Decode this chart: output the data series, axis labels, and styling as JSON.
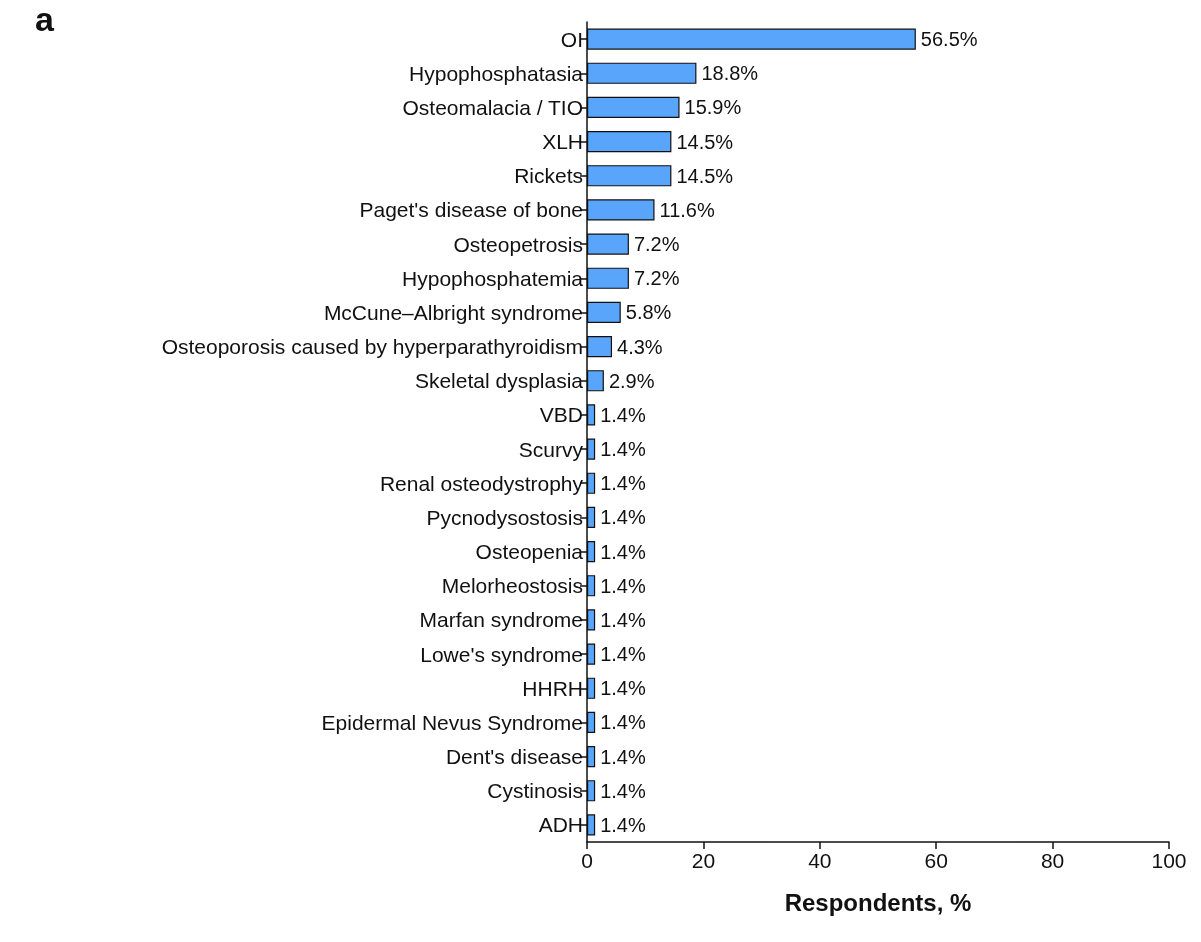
{
  "chart_data": {
    "type": "bar",
    "orientation": "horizontal",
    "annotations": [
      "a"
    ],
    "xlabel": "Respondents, %",
    "categories": [
      "OI",
      "Hypophosphatasia",
      "Osteomalacia / TIO",
      "XLH",
      "Rickets",
      "Paget's disease of bone",
      "Osteopetrosis",
      "Hypophosphatemia",
      "McCune–Albright syndrome",
      "Osteoporosis caused by hyperparathyroidism",
      "Skeletal dysplasia",
      "VBD",
      "Scurvy",
      "Renal osteodystrophy",
      "Pycnodysostosis",
      "Osteopenia",
      "Melorheostosis",
      "Marfan syndrome",
      "Lowe's syndrome",
      "HHRH",
      "Epidermal Nevus Syndrome",
      "Dent's disease",
      "Cystinosis",
      "ADH"
    ],
    "values": [
      56.5,
      18.8,
      15.9,
      14.5,
      14.5,
      11.6,
      7.2,
      7.2,
      5.8,
      4.3,
      2.9,
      1.4,
      1.4,
      1.4,
      1.4,
      1.4,
      1.4,
      1.4,
      1.4,
      1.4,
      1.4,
      1.4,
      1.4,
      1.4
    ],
    "value_labels": [
      "56.5%",
      "18.8%",
      "15.9%",
      "14.5%",
      "14.5%",
      "11.6%",
      "7.2%",
      "7.2%",
      "5.8%",
      "4.3%",
      "2.9%",
      "1.4%",
      "1.4%",
      "1.4%",
      "1.4%",
      "1.4%",
      "1.4%",
      "1.4%",
      "1.4%",
      "1.4%",
      "1.4%",
      "1.4%",
      "1.4%",
      "1.4%"
    ],
    "color": "#5aa5fc",
    "xlim": [
      0,
      100
    ],
    "xticks": [
      0,
      20,
      40,
      60,
      80,
      100
    ]
  }
}
